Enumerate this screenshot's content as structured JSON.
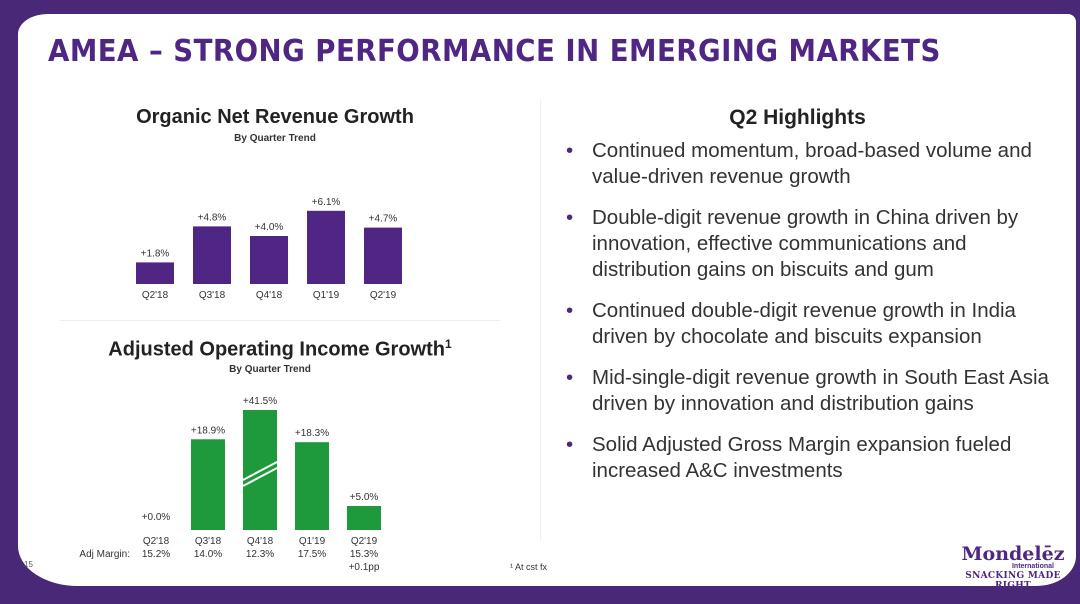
{
  "title": "AMEA – STRONG PERFORMANCE IN EMERGING MARKETS",
  "page_number": "15",
  "footnote": "¹ At cst fx",
  "logo": {
    "name": "Mondelēz",
    "sub": "International",
    "tagline": "SNACKING MADE RIGHT"
  },
  "colors": {
    "purple": "#4f2683",
    "green": "#1e9a3c"
  },
  "highlights": {
    "heading": "Q2 Highlights",
    "bullets": [
      "Continued momentum, broad-based volume and value-driven revenue growth",
      "Double-digit revenue growth in China driven by innovation, effective communications and distribution gains on biscuits and gum",
      "Continued double-digit revenue growth in India driven by chocolate and biscuits expansion",
      "Mid-single-digit revenue growth in South East Asia driven by innovation and distribution gains",
      "Solid Adjusted Gross Margin expansion fueled increased A&C investments"
    ]
  },
  "chart_data": [
    {
      "type": "bar",
      "title": "Organic Net Revenue Growth",
      "subtitle": "By Quarter Trend",
      "categories": [
        "Q2'18",
        "Q3'18",
        "Q4'18",
        "Q1'19",
        "Q2'19"
      ],
      "values": [
        1.8,
        4.8,
        4.0,
        6.1,
        4.7
      ],
      "labels": [
        "+1.8%",
        "+4.8%",
        "+4.0%",
        "+6.1%",
        "+4.7%"
      ],
      "color": "#4f2683"
    },
    {
      "type": "bar",
      "title": "Adjusted Operating Income Growth",
      "title_sup": "1",
      "subtitle": "By Quarter Trend",
      "categories": [
        "Q2'18",
        "Q3'18",
        "Q4'18",
        "Q1'19",
        "Q2'19"
      ],
      "values": [
        0.0,
        18.9,
        41.5,
        18.3,
        5.0
      ],
      "labels": [
        "+0.0%",
        "+18.9%",
        "+41.5%",
        "+18.3%",
        "+5.0%"
      ],
      "broken_axis_bar": "Q4'18",
      "color": "#1e9a3c",
      "margin_label": "Adj Margin:",
      "margins": [
        "15.2%",
        "14.0%",
        "12.3%",
        "17.5%",
        "15.3%"
      ],
      "margin_change": "+0.1pp"
    }
  ]
}
